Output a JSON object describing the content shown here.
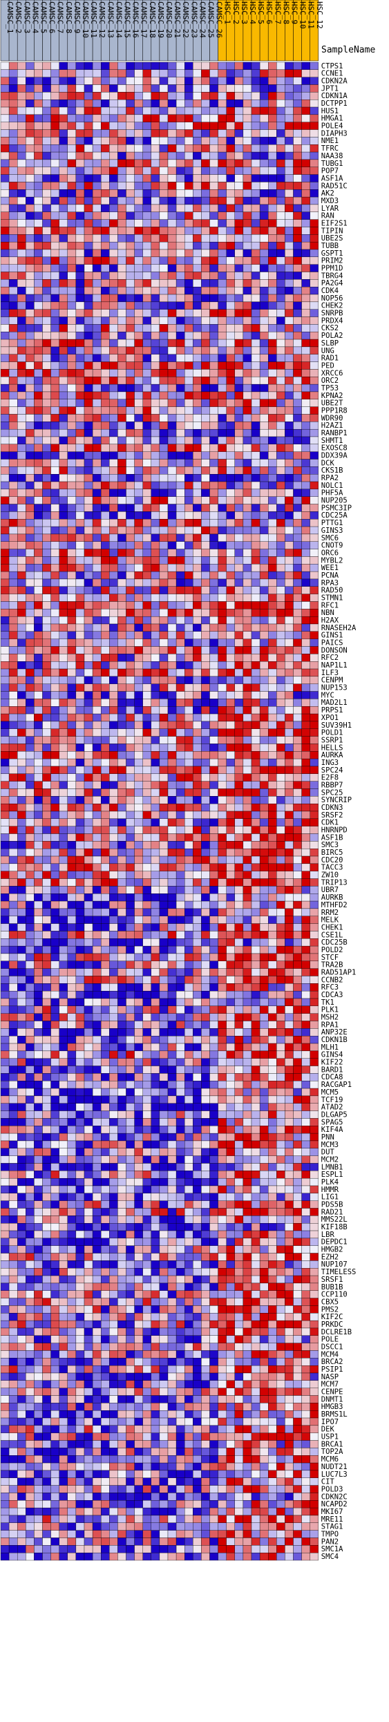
{
  "chart_data": {
    "type": "heatmap",
    "header_label": "SampleName",
    "group_colors": {
      "CAMSC": "#a9b6ce",
      "HSC": "#f9b900"
    },
    "colorscale": {
      "low": "#1900c8",
      "mid": "#f2f2fa",
      "high": "#d20000"
    },
    "columns": [
      {
        "label": "CAMSC_1",
        "group": "CAMSC"
      },
      {
        "label": "CAMSC_2",
        "group": "CAMSC"
      },
      {
        "label": "CAMSC_3",
        "group": "CAMSC"
      },
      {
        "label": "CAMSC_4",
        "group": "CAMSC"
      },
      {
        "label": "CAMSC_5",
        "group": "CAMSC"
      },
      {
        "label": "CAMSC_6",
        "group": "CAMSC"
      },
      {
        "label": "CAMSC_7",
        "group": "CAMSC"
      },
      {
        "label": "CAMSC_8",
        "group": "CAMSC"
      },
      {
        "label": "CAMSC_9",
        "group": "CAMSC"
      },
      {
        "label": "CAMSC_10",
        "group": "CAMSC"
      },
      {
        "label": "CAMSC_11",
        "group": "CAMSC"
      },
      {
        "label": "CAMSC_12",
        "group": "CAMSC"
      },
      {
        "label": "CAMSC_13",
        "group": "CAMSC"
      },
      {
        "label": "CAMSC_14",
        "group": "CAMSC"
      },
      {
        "label": "CAMSC_15",
        "group": "CAMSC"
      },
      {
        "label": "CAMSC_16",
        "group": "CAMSC"
      },
      {
        "label": "CAMSC_17",
        "group": "CAMSC"
      },
      {
        "label": "CAMSC_18",
        "group": "CAMSC"
      },
      {
        "label": "CAMSC_19",
        "group": "CAMSC"
      },
      {
        "label": "CAMSC_20",
        "group": "CAMSC"
      },
      {
        "label": "CAMSC_21",
        "group": "CAMSC"
      },
      {
        "label": "CAMSC_22",
        "group": "CAMSC"
      },
      {
        "label": "CAMSC_23",
        "group": "CAMSC"
      },
      {
        "label": "CAMSC_24",
        "group": "CAMSC"
      },
      {
        "label": "CAMSC_25",
        "group": "CAMSC"
      },
      {
        "label": "CAMSC_26",
        "group": "CAMSC"
      },
      {
        "label": "HSC_1",
        "group": "HSC"
      },
      {
        "label": "HSC_2",
        "group": "HSC"
      },
      {
        "label": "HSC_3",
        "group": "HSC"
      },
      {
        "label": "HSC_4",
        "group": "HSC"
      },
      {
        "label": "HSC_5",
        "group": "HSC"
      },
      {
        "label": "HSC_6",
        "group": "HSC"
      },
      {
        "label": "HSC_7",
        "group": "HSC"
      },
      {
        "label": "HSC_8",
        "group": "HSC"
      },
      {
        "label": "HSC_9",
        "group": "HSC"
      },
      {
        "label": "HSC_10",
        "group": "HSC"
      },
      {
        "label": "HSC_11",
        "group": "HSC"
      },
      {
        "label": "HSC_12",
        "group": "HSC"
      }
    ],
    "rows": [
      "CTPS1",
      "CCNE1",
      "CDKN2A",
      "JPT1",
      "CDKN1A",
      "DCTPP1",
      "HUS1",
      "HMGA1",
      "POLE4",
      "DIAPH3",
      "NME1",
      "TFRC",
      "NAA38",
      "TUBG1",
      "POP7",
      "ASF1A",
      "RAD51C",
      "AK2",
      "MXD3",
      "LYAR",
      "RAN",
      "EIF2S1",
      "TIPIN",
      "UBE2S",
      "TUBB",
      "GSPT1",
      "PRIM2",
      "PPM1D",
      "TBRG4",
      "PA2G4",
      "CDK4",
      "NOP56",
      "CHEK2",
      "SNRPB",
      "PRDX4",
      "CKS2",
      "POLA2",
      "SLBP",
      "UNG",
      "RAD1",
      "PED",
      "XRCC6",
      "ORC2",
      "TP53",
      "KPNA2",
      "UBE2T",
      "PPP1R8",
      "WDR90",
      "H2AZ1",
      "RANBP1",
      "SHMT1",
      "EXOSC8",
      "DDX39A",
      "DCK",
      "CKS1B",
      "RPA2",
      "NOLC1",
      "PHF5A",
      "NUP205",
      "PSMC3IP",
      "CDC25A",
      "PTTG1",
      "GINS3",
      "SMC6",
      "CNOT9",
      "ORC6",
      "MYBL2",
      "WEE1",
      "PCNA",
      "RPA3",
      "RAD50",
      "STMN1",
      "RFC1",
      "NBN",
      "H2AX",
      "RNASEH2A",
      "GINS1",
      "PAICS",
      "DONSON",
      "RFC2",
      "NAP1L1",
      "ILF3",
      "CENPM",
      "NUP153",
      "MYC",
      "MAD2L1",
      "PRPS1",
      "XPO1",
      "SUV39H1",
      "POLD1",
      "SSRP1",
      "HELLS",
      "AURKA",
      "ING3",
      "SPC24",
      "E2F8",
      "RBBP7",
      "SPC25",
      "SYNCRIP",
      "CDKN3",
      "SRSF2",
      "CDK1",
      "HNRNPD",
      "ASF1B",
      "SMC3",
      "BIRC5",
      "CDC20",
      "TACC3",
      "ZW10",
      "TRIP13",
      "UBR7",
      "AURKB",
      "MTHFD2",
      "RRM2",
      "MELK",
      "CHEK1",
      "CSE1L",
      "CDC25B",
      "POLD2",
      "STCF",
      "TRA2B",
      "RAD51AP1",
      "CCNB2",
      "RFC3",
      "CDCA3",
      "TK1",
      "PLK1",
      "MSH2",
      "RPA1",
      "ANP32E",
      "CDKN1B",
      "MLH1",
      "GINS4",
      "KIF22",
      "BARD1",
      "CDCA8",
      "RACGAP1",
      "MCM5",
      "TCF19",
      "ATAD2",
      "DLGAP5",
      "SPAG5",
      "KIF4A",
      "PNN",
      "MCM3",
      "DUT",
      "MCM2",
      "LMNB1",
      "ESPL1",
      "PLK4",
      "HMMR",
      "LIG1",
      "PDS5B",
      "RAD21",
      "MMS22L",
      "KIF18B",
      "LBR",
      "DEPDC1",
      "HMGB2",
      "EZH2",
      "NUP107",
      "TIMELESS",
      "SRSF1",
      "BUB1B",
      "CCP110",
      "CBX5",
      "PMS2",
      "KIF2C",
      "PRKDC",
      "DCLRE1B",
      "POLE",
      "DSCC1",
      "MCM4",
      "BRCA2",
      "PSIP1",
      "NASP",
      "MCM7",
      "CENPE",
      "DNMT1",
      "HMGB3",
      "BRMS1L",
      "IPO7",
      "DEK",
      "USP1",
      "BRCA1",
      "TOP2A",
      "MCM6",
      "NUDT21",
      "LUC7L3",
      "CIT",
      "POLD3",
      "CDKN2C",
      "NCAPD2",
      "MKI67",
      "MRE11",
      "STAG1",
      "TMPO",
      "PAN2",
      "SMC1A",
      "SMC4"
    ],
    "values_seed": 1337
  }
}
